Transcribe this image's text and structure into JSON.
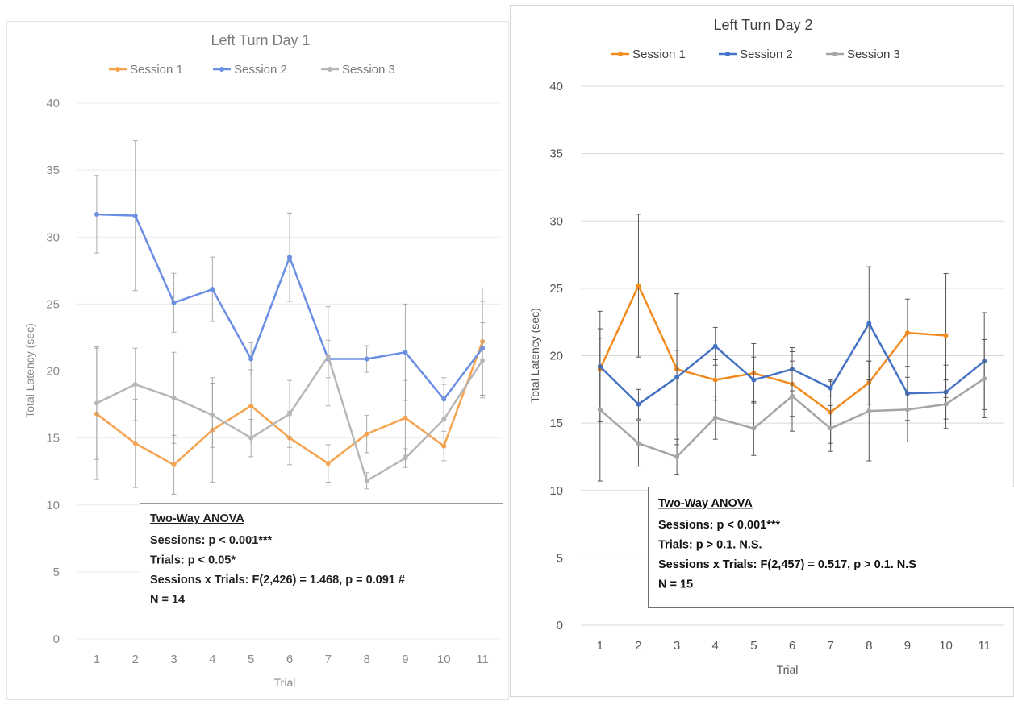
{
  "chart_data": [
    {
      "type": "line",
      "title": "Left Turn Day 1",
      "xlabel": "Trial",
      "ylabel": "Total Latency (sec)",
      "ylim": [
        0,
        40
      ],
      "yticks": [
        0,
        5,
        10,
        15,
        20,
        25,
        30,
        35,
        40
      ],
      "categories": [
        "1",
        "2",
        "3",
        "4",
        "5",
        "6",
        "7",
        "8",
        "9",
        "10",
        "11"
      ],
      "grid": true,
      "legend": "top",
      "series": [
        {
          "name": "Session 1",
          "color": "#f5a34f",
          "values": [
            16.8,
            14.6,
            13.0,
            15.6,
            17.4,
            15.0,
            13.1,
            15.3,
            16.5,
            14.4,
            22.2
          ],
          "errors": [
            4.9,
            3.3,
            2.2,
            3.9,
            2.7,
            2.0,
            1.4,
            1.4,
            2.8,
            1.1,
            4.0
          ]
        },
        {
          "name": "Session 2",
          "color": "#6b8fe3",
          "values": [
            31.7,
            31.6,
            25.1,
            26.1,
            20.9,
            28.5,
            20.9,
            20.9,
            21.4,
            17.9,
            21.7
          ],
          "errors": [
            2.9,
            5.6,
            2.2,
            2.4,
            1.2,
            3.3,
            1.4,
            1.0,
            3.6,
            1.6,
            3.5
          ]
        },
        {
          "name": "Session 3",
          "color": "#b7b7b7",
          "values": [
            17.6,
            19.0,
            18.0,
            16.7,
            15.0,
            16.8,
            21.1,
            11.8,
            13.5,
            16.4,
            20.8
          ],
          "errors": [
            4.2,
            2.7,
            3.4,
            2.4,
            1.4,
            2.5,
            3.7,
            0.6,
            0.7,
            2.6,
            2.8
          ]
        }
      ],
      "annotation": {
        "title": "Two-Way ANOVA",
        "lines": [
          "Sessions: p < 0.001***",
          "Trials: p < 0.05*",
          "Sessions x Trials: F(2,426) = 1.468, p = 0.091 #",
          "N = 14"
        ]
      }
    },
    {
      "type": "line",
      "title": "Left Turn Day 2",
      "xlabel": "Trial",
      "ylabel": "Total Latency (sec)",
      "ylim": [
        0,
        40
      ],
      "yticks": [
        0,
        5,
        10,
        15,
        20,
        25,
        30,
        35,
        40
      ],
      "categories": [
        "1",
        "2",
        "3",
        "4",
        "5",
        "6",
        "7",
        "8",
        "9",
        "10",
        "11"
      ],
      "grid": true,
      "legend": "top",
      "series": [
        {
          "name": "Session 1",
          "color": "#f28b1f",
          "values": [
            19.0,
            25.2,
            19.0,
            18.2,
            18.7,
            17.9,
            15.8,
            18.0,
            21.7,
            21.5,
            null
          ],
          "errors": [
            3.0,
            5.3,
            5.6,
            1.5,
            2.2,
            2.4,
            2.3,
            1.6,
            2.5,
            4.6,
            null
          ]
        },
        {
          "name": "Session 2",
          "color": "#4472c4",
          "values": [
            19.2,
            16.4,
            18.4,
            20.7,
            18.2,
            19.0,
            17.6,
            22.4,
            17.2,
            17.3,
            19.6
          ],
          "errors": [
            4.1,
            1.1,
            2.0,
            1.4,
            1.7,
            1.6,
            0.6,
            4.2,
            2.0,
            2.0,
            3.6
          ]
        },
        {
          "name": "Session 3",
          "color": "#a5a5a5",
          "values": [
            16.0,
            13.5,
            12.5,
            15.4,
            14.6,
            17.0,
            14.6,
            15.9,
            16.0,
            16.4,
            18.3
          ],
          "errors": [
            5.3,
            1.7,
            1.3,
            1.6,
            2.0,
            2.6,
            1.7,
            3.7,
            2.4,
            1.8,
            2.9
          ]
        }
      ],
      "annotation": {
        "title": "Two-Way ANOVA",
        "lines": [
          "Sessions: p < 0.001***",
          "Trials: p > 0.1. N.S.",
          "Sessions x Trials: F(2,457) = 0.517, p > 0.1. N.S",
          "N = 15"
        ]
      }
    }
  ]
}
